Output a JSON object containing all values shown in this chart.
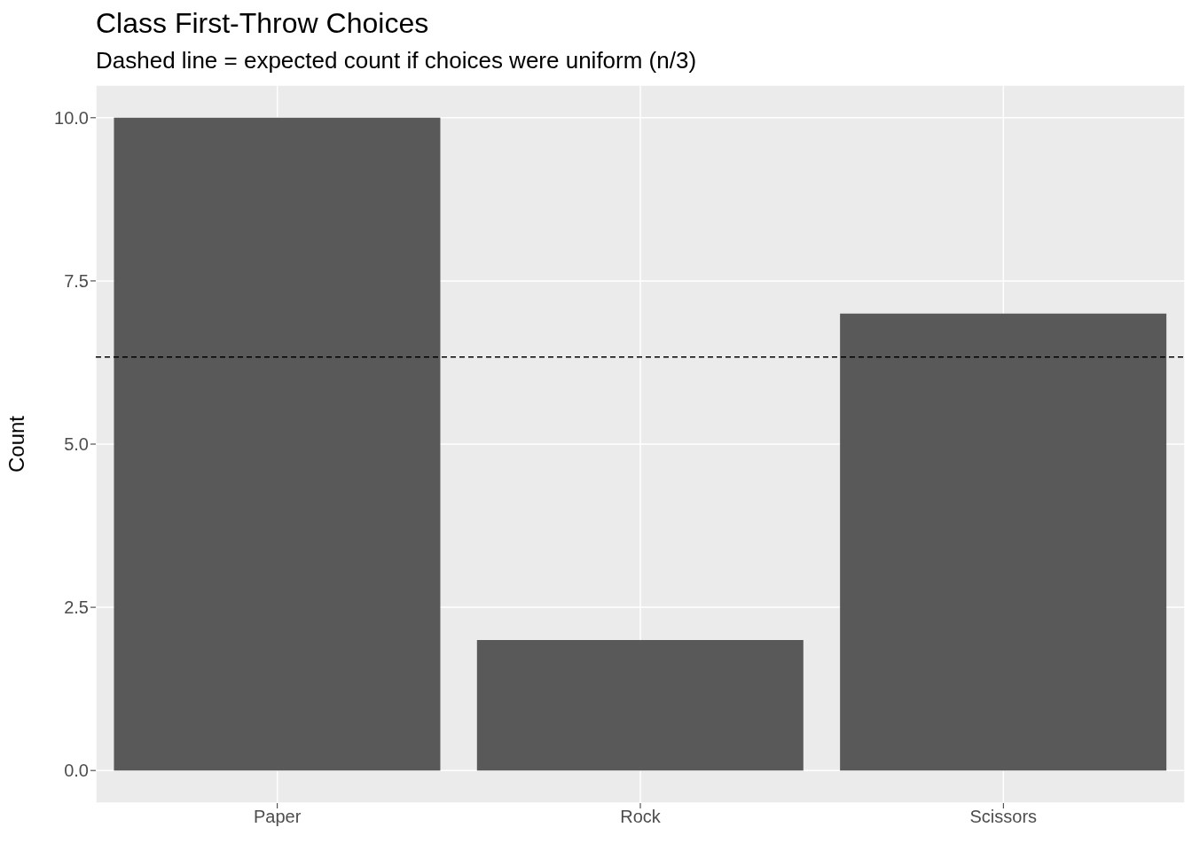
{
  "chart_data": {
    "type": "bar",
    "title": "Class First-Throw Choices",
    "subtitle": "Dashed line = expected count if choices were uniform (n/3)",
    "ylabel": "Count",
    "categories": [
      "Paper",
      "Rock",
      "Scissors"
    ],
    "values": [
      10,
      2,
      7
    ],
    "color": "#595959",
    "ylim": [
      -0.5,
      10.5
    ],
    "yticks": [
      {
        "value": 0,
        "label": "0.0"
      },
      {
        "value": 2.5,
        "label": "2.5"
      },
      {
        "value": 5,
        "label": "5.0"
      },
      {
        "value": 7.5,
        "label": "7.5"
      },
      {
        "value": 10,
        "label": "10.0"
      }
    ],
    "grid": true,
    "ref_lines": [
      {
        "axis": "y",
        "value": 6.333,
        "color": "#000000",
        "line_style": "dashed"
      }
    ]
  }
}
